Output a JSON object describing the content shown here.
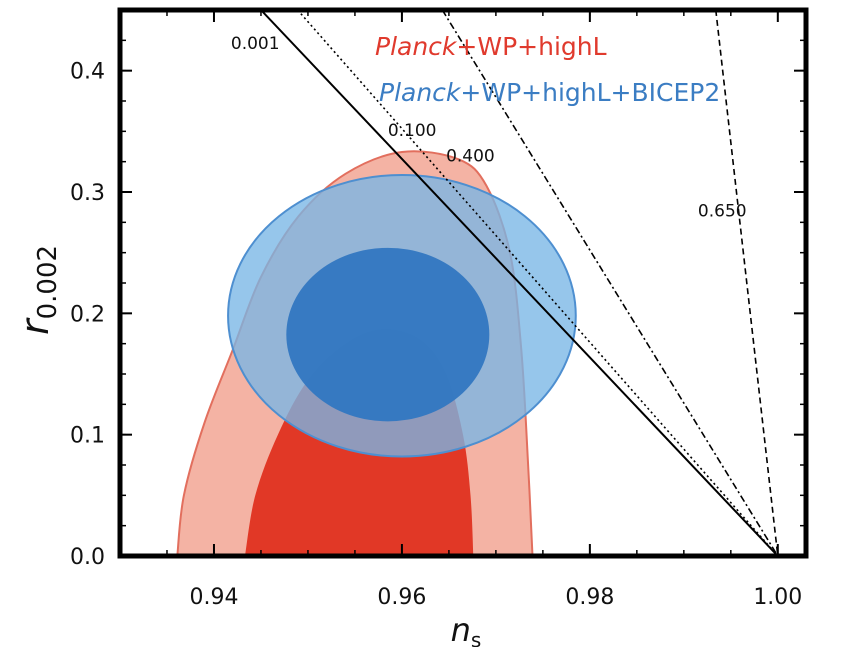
{
  "chart_data": {
    "type": "contour",
    "xlabel": "n",
    "xlabel_sub": "s",
    "ylabel": "r",
    "ylabel_sub": "0.002",
    "xlim": [
      0.93,
      1.003
    ],
    "ylim": [
      0.0,
      0.45
    ],
    "x_ticks": [
      0.94,
      0.96,
      0.98,
      1.0
    ],
    "x_tick_labels": [
      "0.94",
      "0.96",
      "0.98",
      "1.00"
    ],
    "y_ticks": [
      0.0,
      0.1,
      0.2,
      0.3,
      0.4
    ],
    "y_tick_labels": [
      "0.0",
      "0.1",
      "0.2",
      "0.3",
      "0.4"
    ],
    "legend_position": "top-right",
    "legend": [
      {
        "italic": "Planck",
        "rest": "+WP+highL",
        "color": "#e03a2d"
      },
      {
        "italic": "Planck",
        "rest": "+WP+highL+BICEP2",
        "color": "#3b7dc3"
      }
    ],
    "series": [
      {
        "name": "Planck+WP+highL",
        "outer_color": "#f4b3a4",
        "outer_edge": "#e26f5e",
        "inner_color": "#e13826",
        "outer_contour": [
          [
            0.9361,
            0.0
          ],
          [
            0.9368,
            0.05
          ],
          [
            0.939,
            0.11
          ],
          [
            0.942,
            0.17
          ],
          [
            0.945,
            0.23
          ],
          [
            0.949,
            0.28
          ],
          [
            0.954,
            0.315
          ],
          [
            0.96,
            0.333
          ],
          [
            0.966,
            0.327
          ],
          [
            0.969,
            0.305
          ],
          [
            0.9715,
            0.25
          ],
          [
            0.9727,
            0.17
          ],
          [
            0.9734,
            0.08
          ],
          [
            0.9739,
            0.0
          ]
        ],
        "inner_contour": [
          [
            0.9433,
            0.0
          ],
          [
            0.9444,
            0.05
          ],
          [
            0.9468,
            0.1
          ],
          [
            0.95,
            0.145
          ],
          [
            0.954,
            0.175
          ],
          [
            0.958,
            0.187
          ],
          [
            0.962,
            0.178
          ],
          [
            0.9647,
            0.15
          ],
          [
            0.9665,
            0.1
          ],
          [
            0.9673,
            0.05
          ],
          [
            0.9676,
            0.0
          ]
        ]
      },
      {
        "name": "Planck+WP+highL+BICEP2",
        "outer_color": "#79b6e6",
        "outer_alpha": 0.78,
        "outer_edge": "#4e8fd0",
        "inner_color": "#3277c1",
        "outer_center": [
          0.96,
          0.198
        ],
        "outer_radii": [
          0.0185,
          0.116
        ],
        "inner_center": [
          0.9585,
          0.1825
        ],
        "inner_radii": [
          0.0108,
          0.0715
        ]
      }
    ],
    "lines": [
      {
        "label": "0.001",
        "x": [
          0.945,
          1.0
        ],
        "y": [
          0.45,
          0.0
        ],
        "style": "solid"
      },
      {
        "label": "0.100",
        "x": [
          0.9489,
          1.0
        ],
        "y": [
          0.45,
          0.0
        ],
        "style": "dotted"
      },
      {
        "label": "0.400",
        "x": [
          0.9643,
          1.0
        ],
        "y": [
          0.45,
          0.0
        ],
        "style": "dashdot"
      },
      {
        "label": "0.650",
        "x": [
          0.9934,
          1.0
        ],
        "y": [
          0.45,
          0.0
        ],
        "style": "dashed"
      }
    ],
    "line_label_positions": [
      [
        0.9418,
        0.418
      ],
      [
        0.9585,
        0.346
      ],
      [
        0.9647,
        0.325
      ],
      [
        0.9915,
        0.28
      ]
    ]
  }
}
